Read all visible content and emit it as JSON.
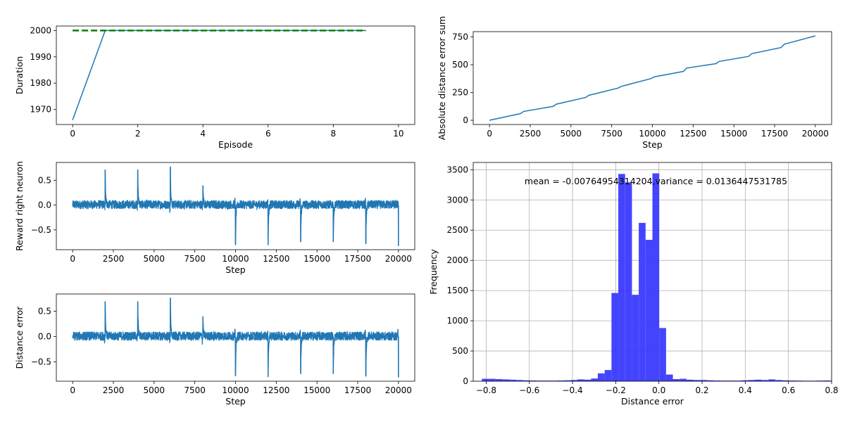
{
  "chart_data": [
    {
      "id": "duration",
      "type": "line",
      "title": "",
      "xlabel": "Episode",
      "ylabel": "Duration",
      "xlim": [
        -0.5,
        10.5
      ],
      "ylim": [
        1964.3,
        2001.7
      ],
      "xticks": [
        0,
        2,
        4,
        6,
        8,
        10
      ],
      "xtick_labels": [
        "0",
        "2",
        "4",
        "6",
        "8",
        "10"
      ],
      "yticks": [
        1970,
        1980,
        1990,
        2000
      ],
      "ytick_labels": [
        "1970",
        "1980",
        "1990",
        "2000"
      ],
      "grid": false,
      "series": [
        {
          "color": "#1f77b4",
          "style": "solid",
          "x": [
            0,
            1,
            2,
            3,
            4,
            5,
            6,
            7,
            8,
            9
          ],
          "y": [
            1966,
            2000,
            2000,
            2000,
            2000,
            2000,
            2000,
            2000,
            2000,
            2000
          ]
        },
        {
          "color": "#008000",
          "style": "dashed",
          "x": [
            0,
            9
          ],
          "y": [
            2000,
            2000
          ]
        }
      ]
    },
    {
      "id": "abs_error_sum",
      "type": "line",
      "title": "",
      "xlabel": "Step",
      "ylabel": "Absolute distance error sum",
      "xlim": [
        -1000,
        21000
      ],
      "ylim": [
        -38,
        798
      ],
      "xticks": [
        0,
        2500,
        5000,
        7500,
        10000,
        12500,
        15000,
        17500,
        20000
      ],
      "xtick_labels": [
        "0",
        "2500",
        "5000",
        "7500",
        "10000",
        "12500",
        "15000",
        "17500",
        "20000"
      ],
      "yticks": [
        0,
        250,
        500,
        750
      ],
      "ytick_labels": [
        "0",
        "250",
        "500",
        "750"
      ],
      "grid": false,
      "series": [
        {
          "color": "#1f77b4",
          "style": "solid",
          "x": [
            0,
            1900,
            2100,
            3900,
            4100,
            5900,
            6100,
            7900,
            8100,
            9900,
            10100,
            11900,
            12100,
            13900,
            14100,
            15900,
            16100,
            17900,
            18100,
            20000
          ],
          "y": [
            0,
            60,
            80,
            125,
            145,
            205,
            225,
            290,
            305,
            375,
            390,
            440,
            470,
            510,
            530,
            575,
            600,
            655,
            685,
            760
          ]
        }
      ]
    },
    {
      "id": "reward_right",
      "type": "line",
      "title": "",
      "xlabel": "Step",
      "ylabel": "Reward right neuron",
      "xlim": [
        -1000,
        21000
      ],
      "ylim": [
        -0.9,
        0.86
      ],
      "xticks": [
        0,
        2500,
        5000,
        7500,
        10000,
        12500,
        15000,
        17500,
        20000
      ],
      "xtick_labels": [
        "0",
        "2500",
        "5000",
        "7500",
        "10000",
        "12500",
        "15000",
        "17500",
        "20000"
      ],
      "yticks": [
        -0.5,
        0.0,
        0.5
      ],
      "ytick_labels": [
        "−0.5",
        "0.0",
        "0.5"
      ],
      "grid": false,
      "noise_band": [
        -0.1,
        0.1
      ],
      "spikes": [
        {
          "x": 2000,
          "y": 0.71
        },
        {
          "x": 4000,
          "y": 0.71
        },
        {
          "x": 6000,
          "y": 0.77
        },
        {
          "x": 8000,
          "y": 0.39
        },
        {
          "x": 10000,
          "y": -0.8
        },
        {
          "x": 12000,
          "y": -0.8
        },
        {
          "x": 14000,
          "y": -0.74
        },
        {
          "x": 16000,
          "y": -0.74
        },
        {
          "x": 18000,
          "y": -0.78
        },
        {
          "x": 20000,
          "y": -0.82
        }
      ],
      "series": [
        {
          "color": "#1f77b4",
          "style": "solid"
        }
      ]
    },
    {
      "id": "distance_error",
      "type": "line",
      "title": "",
      "xlabel": "Step",
      "ylabel": "Distance error",
      "xlim": [
        -1000,
        21000
      ],
      "ylim": [
        -0.88,
        0.84
      ],
      "xticks": [
        0,
        2500,
        5000,
        7500,
        10000,
        12500,
        15000,
        17500,
        20000
      ],
      "xtick_labels": [
        "0",
        "2500",
        "5000",
        "7500",
        "10000",
        "12500",
        "15000",
        "17500",
        "20000"
      ],
      "yticks": [
        -0.5,
        0.0,
        0.5
      ],
      "ytick_labels": [
        "−0.5",
        "0.0",
        "0.5"
      ],
      "grid": false,
      "noise_band": [
        -0.1,
        0.1
      ],
      "spikes": [
        {
          "x": 2000,
          "y": 0.69
        },
        {
          "x": 4000,
          "y": 0.69
        },
        {
          "x": 6000,
          "y": 0.76
        },
        {
          "x": 8000,
          "y": 0.39
        },
        {
          "x": 10000,
          "y": -0.77
        },
        {
          "x": 12000,
          "y": -0.79
        },
        {
          "x": 14000,
          "y": -0.73
        },
        {
          "x": 16000,
          "y": -0.73
        },
        {
          "x": 18000,
          "y": -0.78
        },
        {
          "x": 20000,
          "y": -0.8
        }
      ],
      "series": [
        {
          "color": "#1f77b4",
          "style": "solid"
        }
      ]
    },
    {
      "id": "histogram",
      "type": "bar",
      "title": "",
      "xlabel": "Distance error",
      "ylabel": "Frequency",
      "annotation": "mean = -0.00764954314204,variance = 0.0136447531785",
      "xlim": [
        -0.86,
        0.8
      ],
      "ylim": [
        0,
        3620
      ],
      "xticks": [
        -0.8,
        -0.6,
        -0.4,
        -0.2,
        0.0,
        0.2,
        0.4,
        0.6,
        0.8
      ],
      "xtick_labels": [
        "−0.8",
        "−0.6",
        "−0.4",
        "−0.2",
        "0.0",
        "0.2",
        "0.4",
        "0.6",
        "0.8"
      ],
      "yticks": [
        0,
        500,
        1000,
        1500,
        2000,
        2500,
        3000,
        3500
      ],
      "ytick_labels": [
        "0",
        "500",
        "1000",
        "1500",
        "2000",
        "2500",
        "3000",
        "3500"
      ],
      "grid": true,
      "bar_color": "#3a3aff",
      "bin_start": -0.82,
      "bin_width": 0.0316,
      "values": [
        40,
        40,
        35,
        30,
        25,
        20,
        15,
        12,
        10,
        10,
        10,
        12,
        15,
        20,
        30,
        25,
        45,
        130,
        185,
        1460,
        3430,
        3290,
        1430,
        2620,
        2340,
        3440,
        880,
        110,
        35,
        40,
        25,
        20,
        20,
        15,
        12,
        10,
        10,
        10,
        15,
        20,
        25,
        20,
        30,
        20,
        15,
        12,
        10,
        8,
        8,
        10,
        12,
        10
      ]
    }
  ]
}
